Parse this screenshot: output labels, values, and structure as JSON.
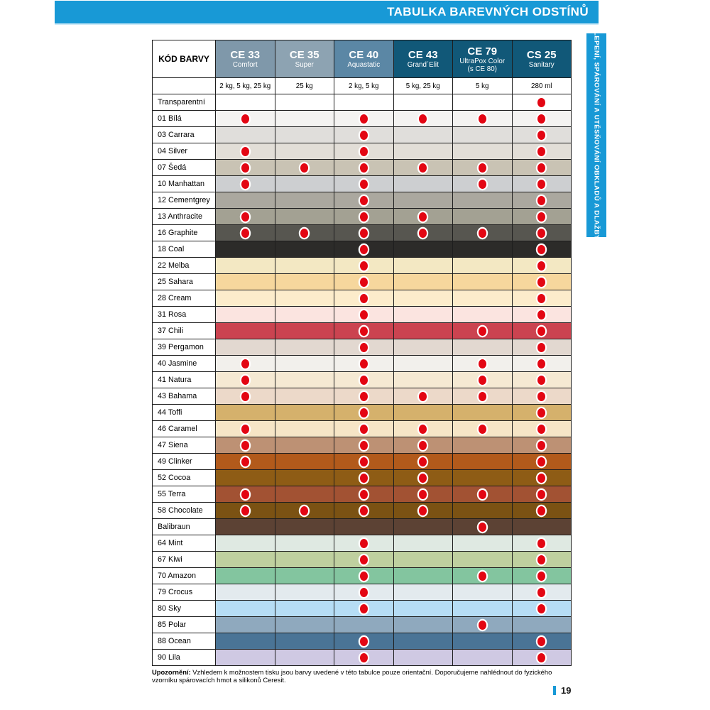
{
  "page": {
    "banner_title": "TABULKA BAREVNÝCH ODSTÍNŮ",
    "side_tab": "LEPENÍ, SPÁROVÁNÍ A UTĚSŇOVÁNÍ OBKLADŮ A DLAŽBY",
    "footer_note_label": "Upozornění:",
    "footer_note_text": " Vzhledem k možnostem tisku jsou barvy uvedené v této tabulce pouze orientační. Doporučujeme nahlédnout do fyzického vzorníku spárovacích hmot a silikonů Ceresit.",
    "page_number": "19",
    "accent_color": "#1899d6",
    "dot_color": "#e30613"
  },
  "table": {
    "corner_header": "KÓD BARVY",
    "products": [
      {
        "code": "CE 33",
        "name": "Comfort",
        "name2": "",
        "packaging": "2 kg, 5 kg, 25 kg",
        "header_color": "#7f98aa"
      },
      {
        "code": "CE 35",
        "name": "Super",
        "name2": "",
        "packaging": "25 kg",
        "header_color": "#8da3b2"
      },
      {
        "code": "CE 40",
        "name": "Aquastatic",
        "name2": "",
        "packaging": "2 kg, 5 kg",
        "header_color": "#5b87a5"
      },
      {
        "code": "CE 43",
        "name": "Grand´Elit",
        "name2": "",
        "packaging": "5 kg, 25 kg",
        "header_color": "#115878"
      },
      {
        "code": "CE 79",
        "name": "UltraPox Color",
        "name2": "(s CE 80)",
        "packaging": "5 kg",
        "header_color": "#115878"
      },
      {
        "code": "CS 25",
        "name": "Sanitary",
        "name2": "",
        "packaging": "280 ml",
        "header_color": "#115878"
      }
    ],
    "rows": [
      {
        "label": "Transparentní",
        "color": "#ffffff",
        "dots": [
          0,
          0,
          0,
          0,
          0,
          1
        ]
      },
      {
        "label": "01 Bílá",
        "color": "#f4f3f1",
        "dots": [
          1,
          0,
          1,
          1,
          1,
          1
        ]
      },
      {
        "label": "03 Carrara",
        "color": "#e0dedb",
        "dots": [
          0,
          0,
          1,
          0,
          0,
          1
        ]
      },
      {
        "label": "04 Silver",
        "color": "#e2ded7",
        "dots": [
          1,
          0,
          1,
          0,
          0,
          1
        ]
      },
      {
        "label": "07 Šedá",
        "color": "#c9c3b4",
        "dots": [
          1,
          1,
          1,
          1,
          1,
          1
        ]
      },
      {
        "label": "10 Manhattan",
        "color": "#cdcfd1",
        "dots": [
          1,
          0,
          1,
          0,
          1,
          1
        ]
      },
      {
        "label": "12 Cementgrey",
        "color": "#aba89f",
        "dots": [
          0,
          0,
          1,
          0,
          0,
          1
        ]
      },
      {
        "label": "13 Anthracite",
        "color": "#a3a193",
        "dots": [
          1,
          0,
          1,
          1,
          0,
          1
        ]
      },
      {
        "label": "16 Graphite",
        "color": "#575650",
        "dots": [
          1,
          1,
          1,
          1,
          1,
          1
        ]
      },
      {
        "label": "18 Coal",
        "color": "#2c2b29",
        "dots": [
          0,
          0,
          1,
          0,
          0,
          1
        ]
      },
      {
        "label": "22 Melba",
        "color": "#f3e8c3",
        "dots": [
          0,
          0,
          1,
          0,
          0,
          1
        ]
      },
      {
        "label": "25 Sahara",
        "color": "#f6d79d",
        "dots": [
          0,
          0,
          1,
          0,
          0,
          1
        ]
      },
      {
        "label": "28 Cream",
        "color": "#fceccb",
        "dots": [
          0,
          0,
          1,
          0,
          0,
          1
        ]
      },
      {
        "label": "31 Rosa",
        "color": "#fbe4e0",
        "dots": [
          0,
          0,
          1,
          0,
          0,
          1
        ]
      },
      {
        "label": "37 Chili",
        "color": "#cb4350",
        "dots": [
          0,
          0,
          1,
          0,
          1,
          1
        ]
      },
      {
        "label": "39 Pergamon",
        "color": "#e2d8d0",
        "dots": [
          0,
          0,
          1,
          0,
          0,
          1
        ]
      },
      {
        "label": "40 Jasmine",
        "color": "#f2f0ec",
        "dots": [
          1,
          0,
          1,
          0,
          1,
          1
        ]
      },
      {
        "label": "41 Natura",
        "color": "#f5e9d3",
        "dots": [
          1,
          0,
          1,
          0,
          1,
          1
        ]
      },
      {
        "label": "43 Bahama",
        "color": "#ecd9c9",
        "dots": [
          1,
          0,
          1,
          1,
          1,
          1
        ]
      },
      {
        "label": "44 Toffi",
        "color": "#d5b16c",
        "dots": [
          0,
          0,
          1,
          0,
          0,
          1
        ]
      },
      {
        "label": "46 Caramel",
        "color": "#f6e5c6",
        "dots": [
          1,
          0,
          1,
          1,
          1,
          1
        ]
      },
      {
        "label": "47 Siena",
        "color": "#bd9174",
        "dots": [
          1,
          0,
          1,
          1,
          0,
          1
        ]
      },
      {
        "label": "49 Clinker",
        "color": "#b25a1b",
        "dots": [
          1,
          0,
          1,
          1,
          0,
          1
        ]
      },
      {
        "label": "52 Cocoa",
        "color": "#8e5c15",
        "dots": [
          0,
          0,
          1,
          1,
          0,
          1
        ]
      },
      {
        "label": "55 Terra",
        "color": "#a25233",
        "dots": [
          1,
          0,
          1,
          1,
          1,
          1
        ]
      },
      {
        "label": "58 Chocolate",
        "color": "#7b5213",
        "dots": [
          1,
          1,
          1,
          1,
          0,
          1
        ]
      },
      {
        "label": "Balibraun",
        "color": "#5c4234",
        "dots": [
          0,
          0,
          0,
          0,
          1,
          0
        ]
      },
      {
        "label": "64 Mint",
        "color": "#dfe9e2",
        "dots": [
          0,
          0,
          1,
          0,
          0,
          1
        ]
      },
      {
        "label": "67 Kiwi",
        "color": "#bfd09f",
        "dots": [
          0,
          0,
          1,
          0,
          0,
          1
        ]
      },
      {
        "label": "70 Amazon",
        "color": "#83c59f",
        "dots": [
          0,
          0,
          1,
          0,
          1,
          1
        ]
      },
      {
        "label": "79 Crocus",
        "color": "#e3eaee",
        "dots": [
          0,
          0,
          1,
          0,
          0,
          1
        ]
      },
      {
        "label": "80 Sky",
        "color": "#b6ddf5",
        "dots": [
          0,
          0,
          1,
          0,
          0,
          1
        ]
      },
      {
        "label": "85 Polar",
        "color": "#8fa9be",
        "dots": [
          0,
          0,
          0,
          0,
          1,
          0
        ]
      },
      {
        "label": "88 Ocean",
        "color": "#4a7496",
        "dots": [
          0,
          0,
          1,
          0,
          0,
          1
        ]
      },
      {
        "label": "90 Lila",
        "color": "#cfc9e3",
        "dots": [
          0,
          0,
          1,
          0,
          0,
          1
        ]
      }
    ]
  }
}
